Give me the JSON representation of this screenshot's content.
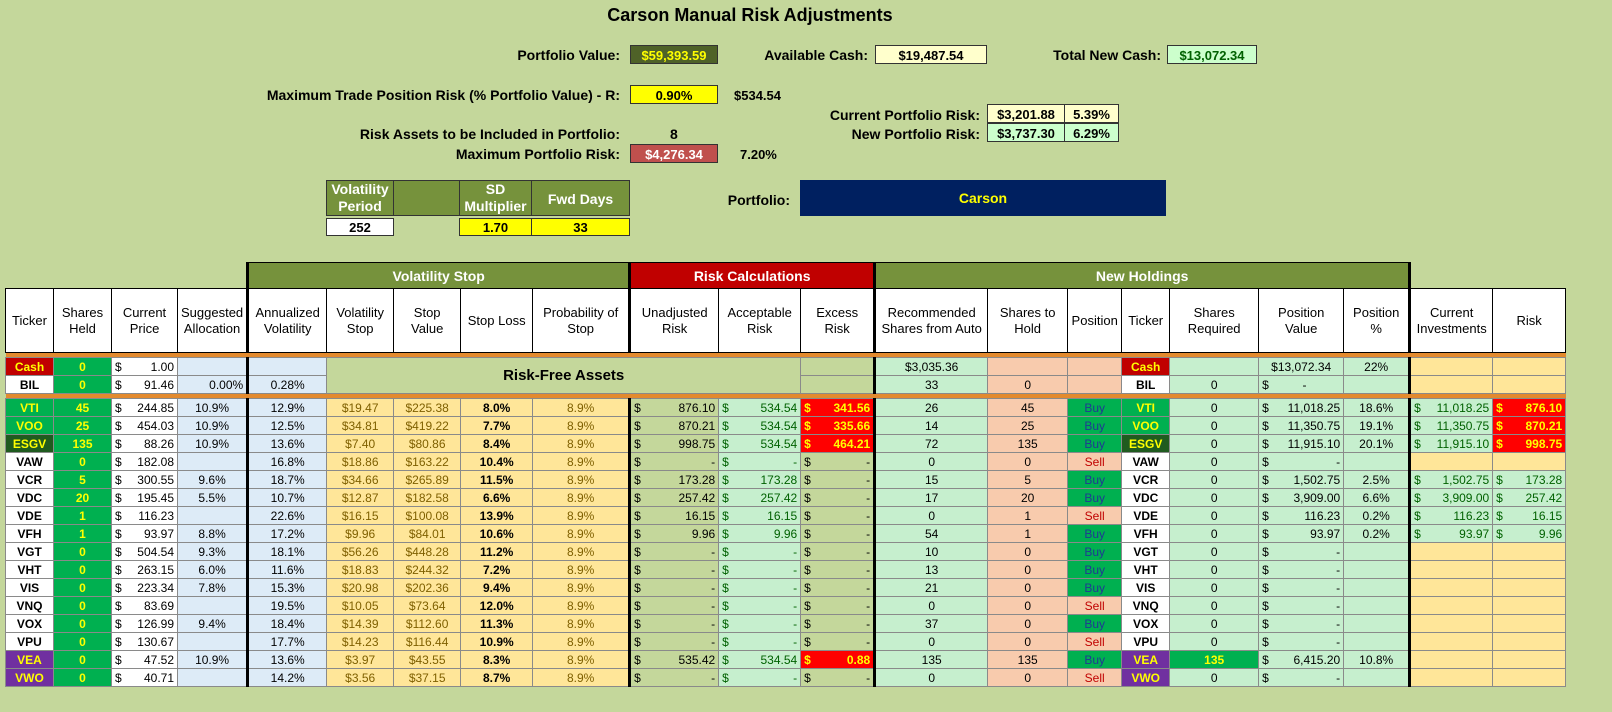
{
  "title": "Carson Manual Risk Adjustments",
  "summary": {
    "portfolio_value_label": "Portfolio Value:",
    "portfolio_value": "$59,393.59",
    "available_cash_label": "Available Cash:",
    "available_cash": "$19,487.54",
    "total_new_cash_label": "Total New Cash:",
    "total_new_cash": "$13,072.34",
    "max_trade_risk_label": "Maximum Trade Position Risk (% Portfolio Value) - R:",
    "max_trade_risk_pct": "0.90%",
    "max_trade_risk_amt": "$534.54",
    "current_risk_label": "Current Portfolio Risk:",
    "current_risk_amt": "$3,201.88",
    "current_risk_pct": "5.39%",
    "new_risk_label": "New Portfolio Risk:",
    "new_risk_amt": "$3,737.30",
    "new_risk_pct": "6.29%",
    "risk_assets_label": "Risk Assets to be Included in Portfolio:",
    "risk_assets_count": "8",
    "max_portfolio_risk_label": "Maximum Portfolio Risk:",
    "max_portfolio_risk_amt": "$4,276.34",
    "max_portfolio_risk_pct": "7.20%",
    "portfolio_label": "Portfolio:",
    "portfolio_name": "Carson"
  },
  "params": {
    "vol_period_label": "Volatility Period",
    "vol_period": "252",
    "sd_mult_label": "SD Multiplier",
    "sd_mult": "1.70",
    "fwd_days_label": "Fwd Days",
    "fwd_days": "33"
  },
  "groups": {
    "volatility_stop": "Volatility Stop",
    "risk_calcs": "Risk Calculations",
    "new_holdings": "New Holdings"
  },
  "headers": [
    "Ticker",
    "Shares Held",
    "Current Price",
    "Suggested Allocation",
    "Annualized Volatility",
    "Volatility Stop",
    "Stop Value",
    "Stop Loss",
    "Probability of Stop",
    "Unadjusted Risk",
    "Acceptable Risk",
    "Excess Risk",
    "Recommended Shares from Auto",
    "Shares to Hold",
    "Position",
    "Ticker",
    "Shares Required",
    "Position Value",
    "Position %",
    "Current Investments",
    "Risk"
  ],
  "risk_free_label": "Risk-Free Assets",
  "cash_row": {
    "ticker": "Cash",
    "shares": "0",
    "price": "1.00",
    "rec": "$3,035.36",
    "ticker2": "Cash",
    "pos_value": "$13,072.34",
    "pos_pct": "22%"
  },
  "bil_row": {
    "ticker": "BIL",
    "shares": "0",
    "price": "91.46",
    "alloc": "0.00%",
    "vol": "0.28%",
    "rec": "33",
    "hold": "0",
    "ticker2": "BIL",
    "req": "0",
    "pos_value": "-"
  },
  "rows": [
    {
      "ticker": "VTI",
      "shares": "45",
      "price": "244.85",
      "alloc": "10.9%",
      "vol": "12.9%",
      "vstop": "$19.47",
      "sval": "$225.38",
      "sloss": "8.0%",
      "prob": "8.9%",
      "unadj": "876.10",
      "accept": "534.54",
      "excess": "341.56",
      "rec": "26",
      "hold": "45",
      "pos": "Buy",
      "ticker2": "VTI",
      "req": "0",
      "pval": "11,018.25",
      "ppct": "18.6%",
      "cur": "11,018.25",
      "risk": "876.10"
    },
    {
      "ticker": "VOO",
      "shares": "25",
      "price": "454.03",
      "alloc": "10.9%",
      "vol": "12.5%",
      "vstop": "$34.81",
      "sval": "$419.22",
      "sloss": "7.7%",
      "prob": "8.9%",
      "unadj": "870.21",
      "accept": "534.54",
      "excess": "335.66",
      "rec": "14",
      "hold": "25",
      "pos": "Buy",
      "ticker2": "VOO",
      "req": "0",
      "pval": "11,350.75",
      "ppct": "19.1%",
      "cur": "11,350.75",
      "risk": "870.21"
    },
    {
      "ticker": "ESGV",
      "shares": "135",
      "price": "88.26",
      "alloc": "10.9%",
      "vol": "13.6%",
      "vstop": "$7.40",
      "sval": "$80.86",
      "sloss": "8.4%",
      "prob": "8.9%",
      "unadj": "998.75",
      "accept": "534.54",
      "excess": "464.21",
      "rec": "72",
      "hold": "135",
      "pos": "Buy",
      "ticker2": "ESGV",
      "req": "0",
      "pval": "11,915.10",
      "ppct": "20.1%",
      "cur": "11,915.10",
      "risk": "998.75"
    },
    {
      "ticker": "VAW",
      "shares": "0",
      "price": "182.08",
      "alloc": "",
      "vol": "16.8%",
      "vstop": "$18.86",
      "sval": "$163.22",
      "sloss": "10.4%",
      "prob": "8.9%",
      "unadj": "-",
      "accept": "-",
      "excess": "-",
      "rec": "0",
      "hold": "0",
      "pos": "Sell",
      "ticker2": "VAW",
      "req": "0",
      "pval": "-",
      "ppct": "",
      "cur": "",
      "risk": ""
    },
    {
      "ticker": "VCR",
      "shares": "5",
      "price": "300.55",
      "alloc": "9.6%",
      "vol": "18.7%",
      "vstop": "$34.66",
      "sval": "$265.89",
      "sloss": "11.5%",
      "prob": "8.9%",
      "unadj": "173.28",
      "accept": "173.28",
      "excess": "-",
      "rec": "15",
      "hold": "5",
      "pos": "Buy",
      "ticker2": "VCR",
      "req": "0",
      "pval": "1,502.75",
      "ppct": "2.5%",
      "cur": "1,502.75",
      "risk": "173.28"
    },
    {
      "ticker": "VDC",
      "shares": "20",
      "price": "195.45",
      "alloc": "5.5%",
      "vol": "10.7%",
      "vstop": "$12.87",
      "sval": "$182.58",
      "sloss": "6.6%",
      "prob": "8.9%",
      "unadj": "257.42",
      "accept": "257.42",
      "excess": "-",
      "rec": "17",
      "hold": "20",
      "pos": "Buy",
      "ticker2": "VDC",
      "req": "0",
      "pval": "3,909.00",
      "ppct": "6.6%",
      "cur": "3,909.00",
      "risk": "257.42"
    },
    {
      "ticker": "VDE",
      "shares": "1",
      "price": "116.23",
      "alloc": "",
      "vol": "22.6%",
      "vstop": "$16.15",
      "sval": "$100.08",
      "sloss": "13.9%",
      "prob": "8.9%",
      "unadj": "16.15",
      "accept": "16.15",
      "excess": "-",
      "rec": "0",
      "hold": "1",
      "pos": "Sell",
      "ticker2": "VDE",
      "req": "0",
      "pval": "116.23",
      "ppct": "0.2%",
      "cur": "116.23",
      "risk": "16.15"
    },
    {
      "ticker": "VFH",
      "shares": "1",
      "price": "93.97",
      "alloc": "8.8%",
      "vol": "17.2%",
      "vstop": "$9.96",
      "sval": "$84.01",
      "sloss": "10.6%",
      "prob": "8.9%",
      "unadj": "9.96",
      "accept": "9.96",
      "excess": "-",
      "rec": "54",
      "hold": "1",
      "pos": "Buy",
      "ticker2": "VFH",
      "req": "0",
      "pval": "93.97",
      "ppct": "0.2%",
      "cur": "93.97",
      "risk": "9.96"
    },
    {
      "ticker": "VGT",
      "shares": "0",
      "price": "504.54",
      "alloc": "9.3%",
      "vol": "18.1%",
      "vstop": "$56.26",
      "sval": "$448.28",
      "sloss": "11.2%",
      "prob": "8.9%",
      "unadj": "-",
      "accept": "-",
      "excess": "-",
      "rec": "10",
      "hold": "0",
      "pos": "Buy",
      "ticker2": "VGT",
      "req": "0",
      "pval": "-",
      "ppct": "",
      "cur": "",
      "risk": ""
    },
    {
      "ticker": "VHT",
      "shares": "0",
      "price": "263.15",
      "alloc": "6.0%",
      "vol": "11.6%",
      "vstop": "$18.83",
      "sval": "$244.32",
      "sloss": "7.2%",
      "prob": "8.9%",
      "unadj": "-",
      "accept": "-",
      "excess": "-",
      "rec": "13",
      "hold": "0",
      "pos": "Buy",
      "ticker2": "VHT",
      "req": "0",
      "pval": "-",
      "ppct": "",
      "cur": "",
      "risk": ""
    },
    {
      "ticker": "VIS",
      "shares": "0",
      "price": "223.34",
      "alloc": "7.8%",
      "vol": "15.3%",
      "vstop": "$20.98",
      "sval": "$202.36",
      "sloss": "9.4%",
      "prob": "8.9%",
      "unadj": "-",
      "accept": "-",
      "excess": "-",
      "rec": "21",
      "hold": "0",
      "pos": "Buy",
      "ticker2": "VIS",
      "req": "0",
      "pval": "-",
      "ppct": "",
      "cur": "",
      "risk": ""
    },
    {
      "ticker": "VNQ",
      "shares": "0",
      "price": "83.69",
      "alloc": "",
      "vol": "19.5%",
      "vstop": "$10.05",
      "sval": "$73.64",
      "sloss": "12.0%",
      "prob": "8.9%",
      "unadj": "-",
      "accept": "-",
      "excess": "-",
      "rec": "0",
      "hold": "0",
      "pos": "Sell",
      "ticker2": "VNQ",
      "req": "0",
      "pval": "-",
      "ppct": "",
      "cur": "",
      "risk": ""
    },
    {
      "ticker": "VOX",
      "shares": "0",
      "price": "126.99",
      "alloc": "9.4%",
      "vol": "18.4%",
      "vstop": "$14.39",
      "sval": "$112.60",
      "sloss": "11.3%",
      "prob": "8.9%",
      "unadj": "-",
      "accept": "-",
      "excess": "-",
      "rec": "37",
      "hold": "0",
      "pos": "Buy",
      "ticker2": "VOX",
      "req": "0",
      "pval": "-",
      "ppct": "",
      "cur": "",
      "risk": ""
    },
    {
      "ticker": "VPU",
      "shares": "0",
      "price": "130.67",
      "alloc": "",
      "vol": "17.7%",
      "vstop": "$14.23",
      "sval": "$116.44",
      "sloss": "10.9%",
      "prob": "8.9%",
      "unadj": "-",
      "accept": "-",
      "excess": "-",
      "rec": "0",
      "hold": "0",
      "pos": "Sell",
      "ticker2": "VPU",
      "req": "0",
      "pval": "-",
      "ppct": "",
      "cur": "",
      "risk": ""
    },
    {
      "ticker": "VEA",
      "shares": "0",
      "price": "47.52",
      "alloc": "10.9%",
      "vol": "13.6%",
      "vstop": "$3.97",
      "sval": "$43.55",
      "sloss": "8.3%",
      "prob": "8.9%",
      "unadj": "535.42",
      "accept": "534.54",
      "excess": "0.88",
      "rec": "135",
      "hold": "135",
      "pos": "Buy",
      "ticker2": "VEA",
      "req": "135",
      "pval": "6,415.20",
      "ppct": "10.8%",
      "cur": "",
      "risk": ""
    },
    {
      "ticker": "VWO",
      "shares": "0",
      "price": "40.71",
      "alloc": "",
      "vol": "14.2%",
      "vstop": "$3.56",
      "sval": "$37.15",
      "sloss": "8.7%",
      "prob": "8.9%",
      "unadj": "-",
      "accept": "-",
      "excess": "-",
      "rec": "0",
      "hold": "0",
      "pos": "Sell",
      "ticker2": "VWO",
      "req": "0",
      "pval": "-",
      "ppct": "",
      "cur": "",
      "risk": ""
    }
  ],
  "colors": {
    "olive": "#76923c",
    "red_header": "#c00000",
    "navy": "#002060",
    "bg": "#c4d79b"
  }
}
